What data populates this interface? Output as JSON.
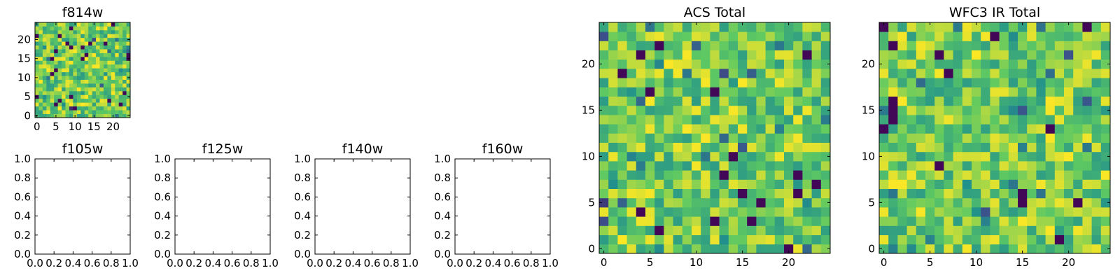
{
  "colormap": [
    "#440154",
    "#3b528b",
    "#21918c",
    "#5ec962",
    "#fde725"
  ],
  "chart_data": [
    {
      "type": "heatmap",
      "title": "f814w",
      "grid": [
        25,
        25
      ],
      "xlim": [
        -0.5,
        24.5
      ],
      "ylim": [
        -0.5,
        24.5
      ],
      "xticks": [
        "0",
        "5",
        "10",
        "15",
        "20"
      ],
      "yticks": [
        "0",
        "5",
        "10",
        "15",
        "20"
      ],
      "seed": 11,
      "value_range": [
        0,
        1
      ]
    },
    {
      "type": "empty",
      "title": "f105w",
      "xlim": [
        0,
        1
      ],
      "ylim": [
        0,
        1
      ],
      "xticks": [
        "0.0",
        "0.2",
        "0.4",
        "0.6",
        "0.8",
        "1.0"
      ],
      "yticks": [
        "0.0",
        "0.2",
        "0.4",
        "0.6",
        "0.8",
        "1.0"
      ]
    },
    {
      "type": "empty",
      "title": "f125w",
      "xlim": [
        0,
        1
      ],
      "ylim": [
        0,
        1
      ],
      "xticks": [
        "0.0",
        "0.2",
        "0.4",
        "0.6",
        "0.8",
        "1.0"
      ],
      "yticks": [
        "0.0",
        "0.2",
        "0.4",
        "0.6",
        "0.8",
        "1.0"
      ]
    },
    {
      "type": "empty",
      "title": "f140w",
      "xlim": [
        0,
        1
      ],
      "ylim": [
        0,
        1
      ],
      "xticks": [
        "0.0",
        "0.2",
        "0.4",
        "0.6",
        "0.8",
        "1.0"
      ],
      "yticks": [
        "0.0",
        "0.2",
        "0.4",
        "0.6",
        "0.8",
        "1.0"
      ]
    },
    {
      "type": "empty",
      "title": "f160w",
      "xlim": [
        0,
        1
      ],
      "ylim": [
        0,
        1
      ],
      "xticks": [
        "0.0",
        "0.2",
        "0.4",
        "0.6",
        "0.8",
        "1.0"
      ],
      "yticks": [
        "0.0",
        "0.2",
        "0.4",
        "0.6",
        "0.8",
        "1.0"
      ]
    },
    {
      "type": "heatmap",
      "title": "ACS Total",
      "grid": [
        25,
        25
      ],
      "xlim": [
        -0.5,
        24.5
      ],
      "ylim": [
        -0.5,
        24.5
      ],
      "xticks": [
        "0",
        "5",
        "10",
        "15",
        "20"
      ],
      "yticks": [
        "0",
        "5",
        "10",
        "15",
        "20"
      ],
      "seed": 23,
      "value_range": [
        0,
        1
      ]
    },
    {
      "type": "heatmap",
      "title": "WFC3 IR Total",
      "grid": [
        25,
        25
      ],
      "xlim": [
        -0.5,
        24.5
      ],
      "ylim": [
        -0.5,
        24.5
      ],
      "xticks": [
        "0",
        "5",
        "10",
        "15",
        "20"
      ],
      "yticks": [
        "0",
        "5",
        "10",
        "15",
        "20"
      ],
      "seed": 37,
      "value_range": [
        0,
        1
      ]
    }
  ]
}
